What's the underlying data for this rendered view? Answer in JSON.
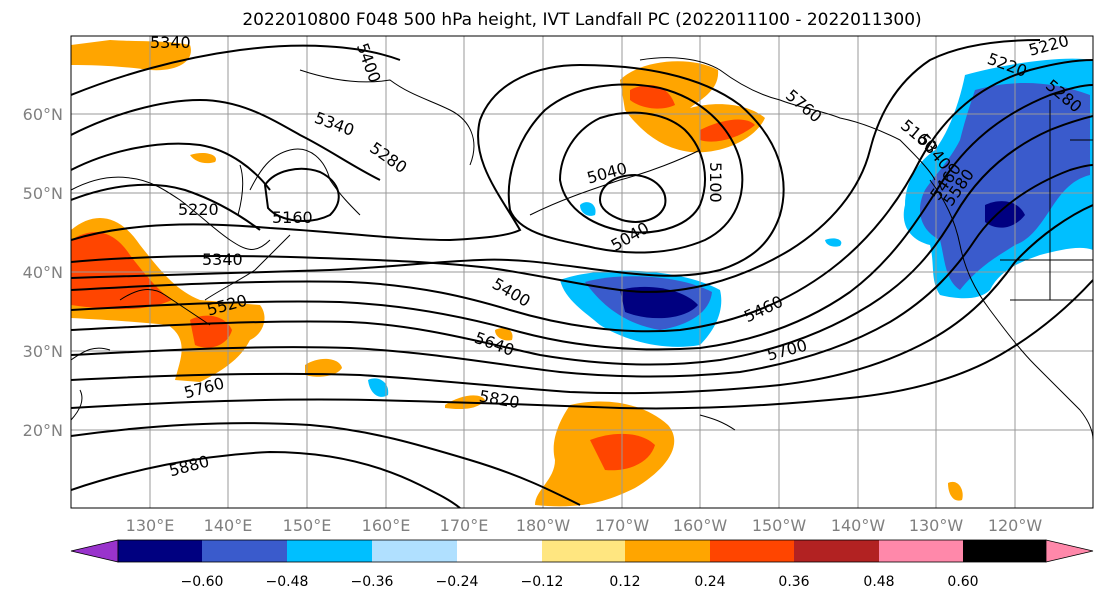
{
  "title": "2022010800 F048 500 hPa height, IVT Landfall PC (2022011100 - 2022011300)",
  "lat_labels": [
    "20°N",
    "30°N",
    "40°N",
    "50°N",
    "60°N"
  ],
  "lon_labels": [
    "130°E",
    "140°E",
    "150°E",
    "160°E",
    "170°E",
    "180°W",
    "170°W",
    "160°W",
    "150°W",
    "140°W",
    "130°W",
    "120°W"
  ],
  "contour_labels": [
    "5340",
    "5400",
    "5220",
    "5760",
    "5340",
    "5280",
    "5220",
    "5160",
    "5340",
    "5520",
    "5760",
    "5880",
    "5040",
    "5100",
    "5040",
    "5400",
    "5640",
    "5820",
    "5460",
    "5700",
    "5160",
    "5220",
    "5280",
    "5340",
    "5460",
    "5580"
  ],
  "colorbar": {
    "ticks": [
      "−0.60",
      "−0.48",
      "−0.36",
      "−0.24",
      "−0.12",
      "0.12",
      "0.24",
      "0.36",
      "0.48",
      "0.60"
    ],
    "colors": [
      "#9933cc",
      "#000080",
      "#3a5bcc",
      "#00bfff",
      "#b0e0ff",
      "#ffffff",
      "#ffe680",
      "#ffa500",
      "#ff4500",
      "#b22222",
      "#ff88aa"
    ]
  },
  "colors": {
    "contour": "#000000",
    "grid": "#999999",
    "coast": "#000000",
    "tick_label": "#808080"
  }
}
